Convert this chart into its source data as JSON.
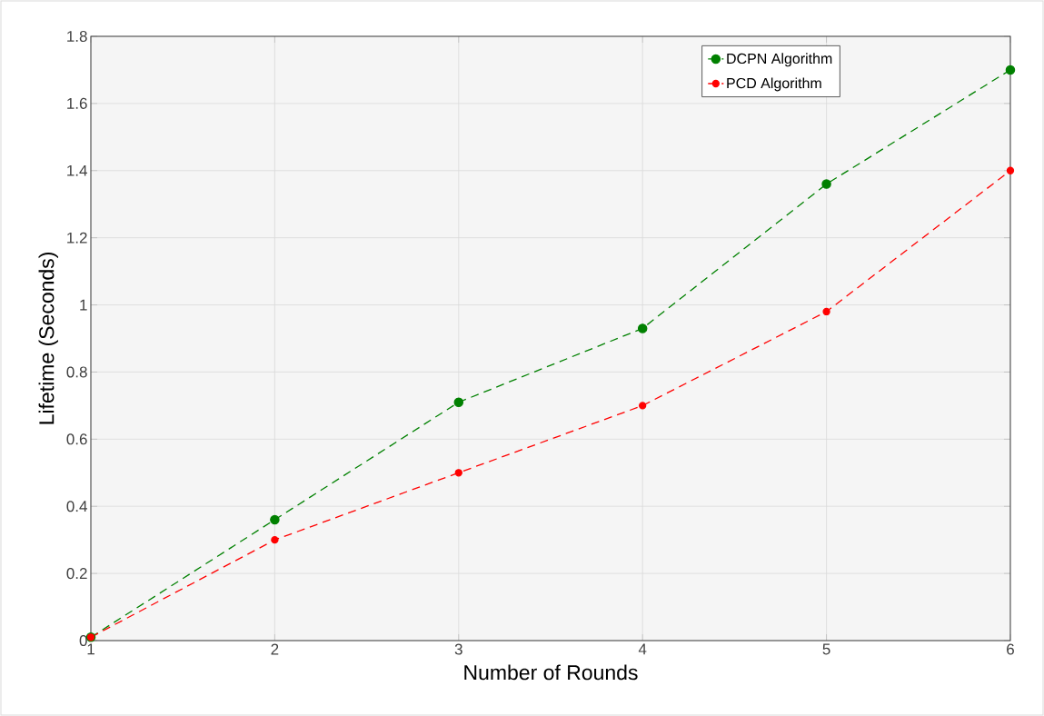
{
  "chart_data": {
    "type": "line",
    "xlabel": "Number of Rounds",
    "ylabel": "Lifetime (Seconds)",
    "x": [
      1,
      2,
      3,
      4,
      5,
      6
    ],
    "series": [
      {
        "name": "DCPN Algorithm",
        "color": "#008000",
        "values": [
          0.01,
          0.36,
          0.71,
          0.93,
          1.36,
          1.7
        ]
      },
      {
        "name": "PCD Algorithm",
        "color": "#ff0000",
        "values": [
          0.01,
          0.3,
          0.5,
          0.7,
          0.98,
          1.4
        ]
      }
    ],
    "xlim": [
      1,
      6
    ],
    "ylim": [
      0,
      1.8
    ],
    "xticks": [
      1,
      2,
      3,
      4,
      5,
      6
    ],
    "yticks": [
      0,
      0.2,
      0.4,
      0.6,
      0.8,
      1,
      1.2,
      1.4,
      1.6,
      1.8
    ],
    "grid": true,
    "legend": "top right",
    "marker": "circle",
    "line_style": "dashed"
  }
}
